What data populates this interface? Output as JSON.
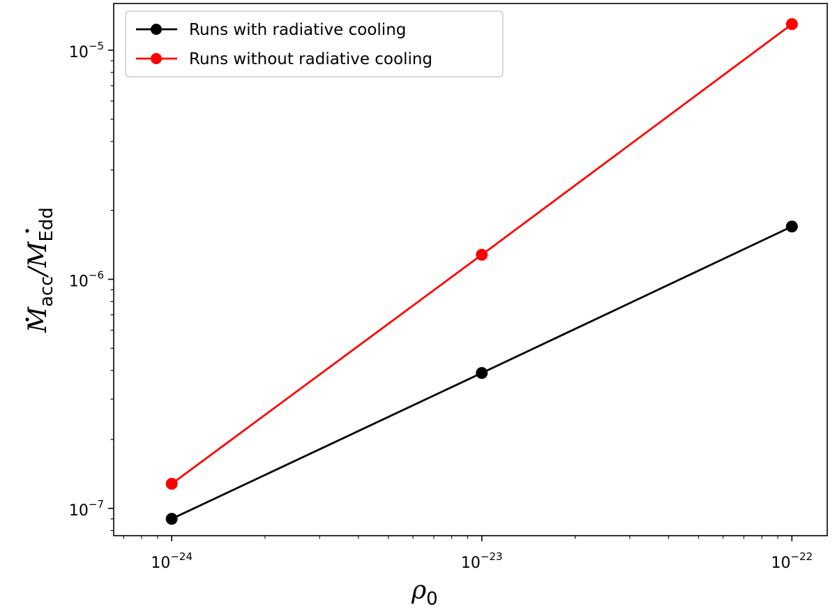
{
  "chart_data": {
    "type": "line",
    "xscale": "log",
    "yscale": "log",
    "x": [
      1e-24,
      1e-23,
      1e-22
    ],
    "xlim": [
      6.5e-25,
      1.3e-22
    ],
    "ylim": [
      7.6e-08,
      1.6e-05
    ],
    "xlabel": {
      "base": "ρ",
      "sub": "0"
    },
    "ylabel": {
      "num": "M",
      "num_sub": "acc",
      "den": "M",
      "den_sub": "Edd"
    },
    "x_ticks": [
      {
        "value": 1e-24,
        "base": "10",
        "exp": "−24"
      },
      {
        "value": 1e-23,
        "base": "10",
        "exp": "−23"
      },
      {
        "value": 1e-22,
        "base": "10",
        "exp": "−22"
      }
    ],
    "y_ticks": [
      {
        "value": 1e-07,
        "base": "10",
        "exp": "−7"
      },
      {
        "value": 1e-06,
        "base": "10",
        "exp": "−6"
      },
      {
        "value": 1e-05,
        "base": "10",
        "exp": "−5"
      }
    ],
    "grid": false,
    "legend_position": "top-left",
    "series": [
      {
        "name": "Runs with radiative cooling",
        "color": "#000000",
        "values": [
          9e-08,
          3.9e-07,
          1.7e-06
        ]
      },
      {
        "name": "Runs without radiative cooling",
        "color": "#ff0000",
        "values": [
          1.28e-07,
          1.28e-06,
          1.3e-05
        ]
      }
    ]
  }
}
